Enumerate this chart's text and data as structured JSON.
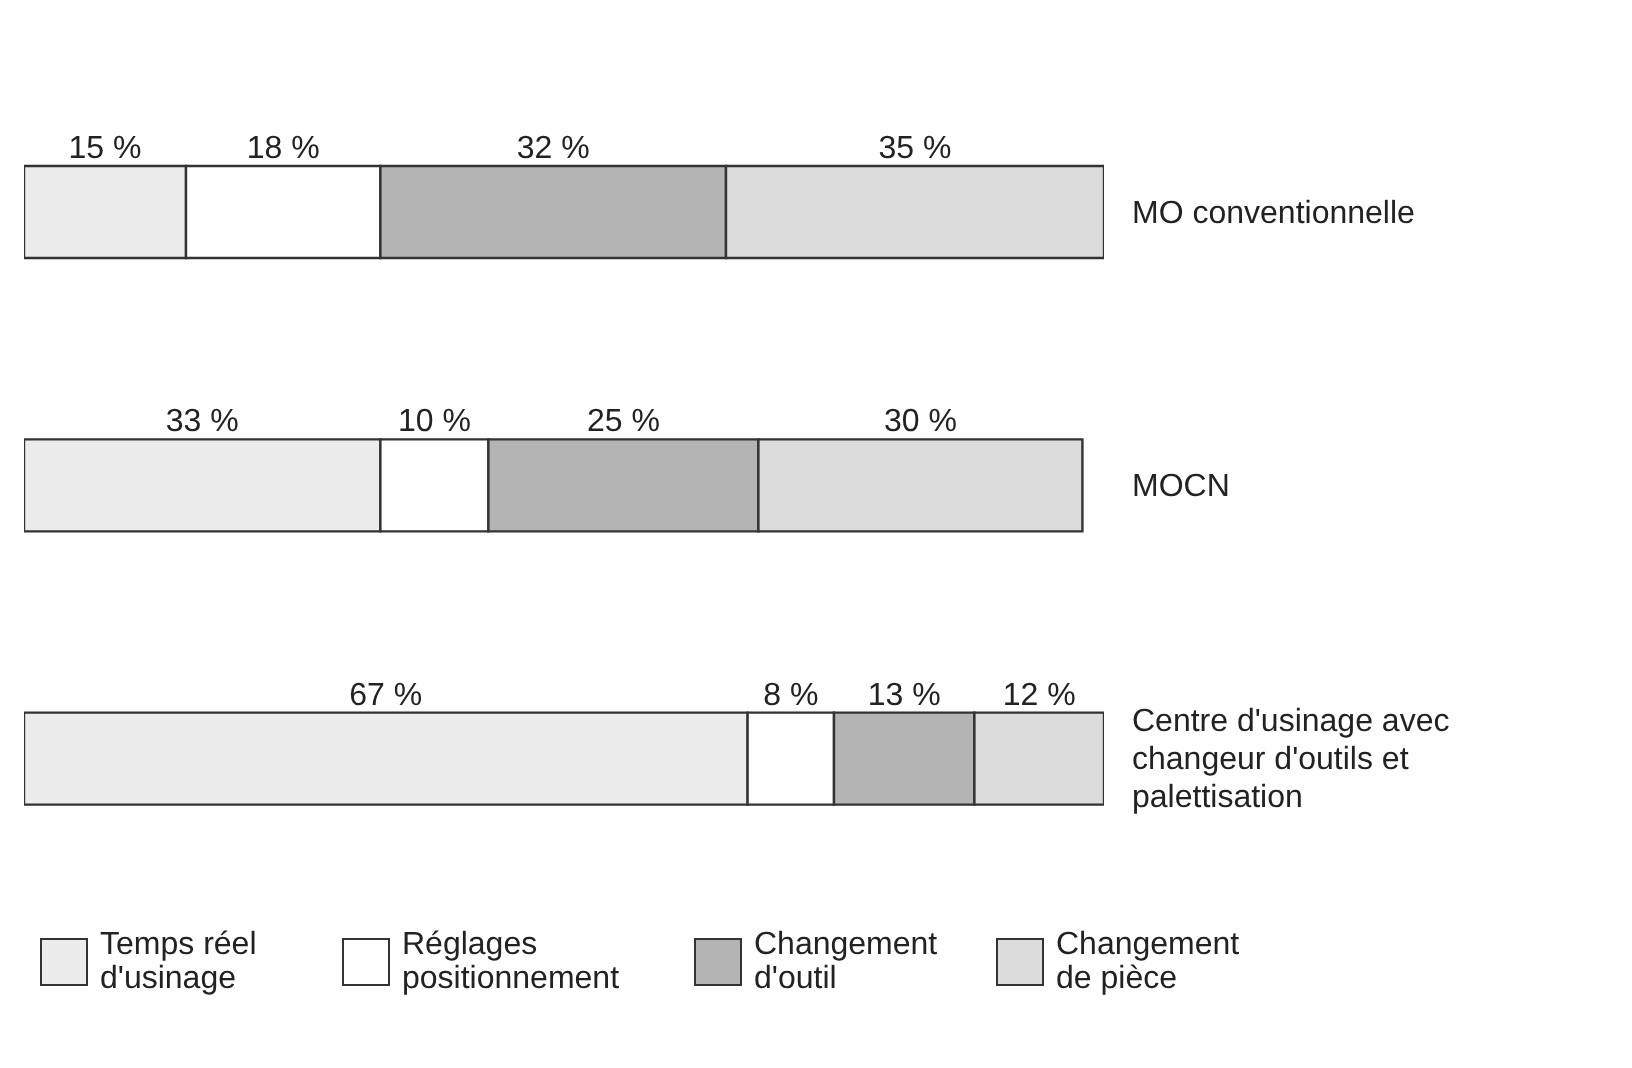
{
  "chart_data": {
    "type": "bar",
    "orientation": "horizontal",
    "stacked": true,
    "categories": [
      "MO conventionnelle",
      "MOCN",
      "Centre d'usinage avec changeur d'outils et palettisation"
    ],
    "tick_labels": false,
    "grid": false,
    "legend": "bottom",
    "series": [
      {
        "name": "Temps réel d'usinage",
        "color": "#ececec",
        "values": [
          15,
          33,
          67
        ],
        "value_labels": [
          "15 %",
          "33 %",
          "67 %"
        ]
      },
      {
        "name": "Réglages positionnement",
        "color": "#ffffff",
        "values": [
          18,
          10,
          8
        ],
        "value_labels": [
          "18 %",
          "10 %",
          "8 %"
        ]
      },
      {
        "name": "Changement d'outil",
        "color": "#b4b4b4",
        "values": [
          32,
          25,
          13
        ],
        "value_labels": [
          "32 %",
          "25 %",
          "13 %"
        ]
      },
      {
        "name": "Changement de pièce",
        "color": "#dcdcdc",
        "values": [
          35,
          30,
          12
        ],
        "value_labels": [
          "35 %",
          "30 %",
          "12 %"
        ]
      }
    ]
  }
}
